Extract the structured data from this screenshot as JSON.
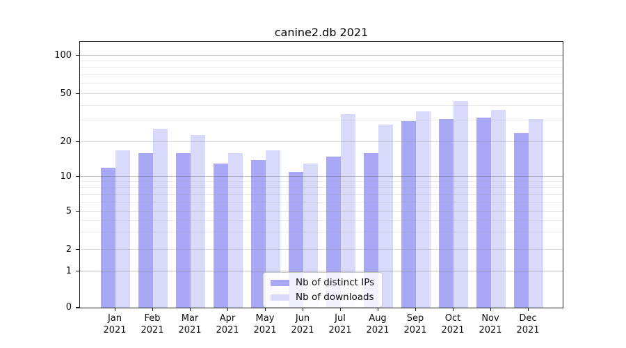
{
  "chart_data": {
    "type": "bar",
    "title": "canine2.db 2021",
    "categories": [
      "Jan 2021",
      "Feb 2021",
      "Mar 2021",
      "Apr 2021",
      "May 2021",
      "Jun 2021",
      "Jul 2021",
      "Aug 2021",
      "Sep 2021",
      "Oct 2021",
      "Nov 2021",
      "Dec 2021"
    ],
    "series": [
      {
        "name": "Nb of distinct IPs",
        "color": "#a8a8f6",
        "values": [
          12,
          16,
          16,
          13,
          14,
          11,
          15,
          16,
          30,
          31,
          32,
          24
        ]
      },
      {
        "name": "Nb of downloads",
        "color": "#d9d9fa",
        "values": [
          17,
          26,
          23,
          16,
          17,
          13,
          34,
          28,
          36,
          44,
          37,
          31
        ]
      }
    ],
    "xlabel": "",
    "ylabel": "",
    "yscale": "symlog (log above 1, linear 0-1)",
    "y_ticks": [
      100,
      50,
      20,
      10,
      5,
      2,
      1,
      0
    ],
    "ylim": [
      0,
      130
    ],
    "grid": true,
    "legend_position": "lower center"
  }
}
